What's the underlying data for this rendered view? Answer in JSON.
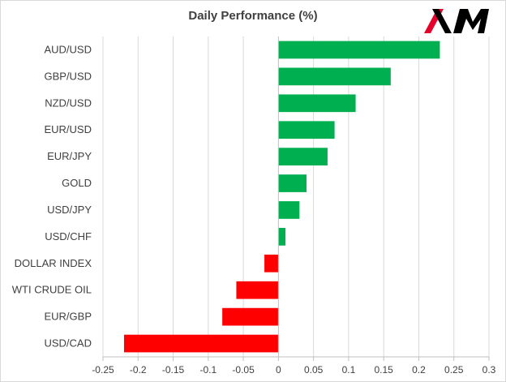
{
  "chart_data": {
    "type": "bar",
    "orientation": "horizontal",
    "title": "Daily Performance (%)",
    "xlabel": "",
    "ylabel": "",
    "categories": [
      "AUD/USD",
      "GBP/USD",
      "NZD/USD",
      "EUR/USD",
      "EUR/JPY",
      "GOLD",
      "USD/JPY",
      "USD/CHF",
      "DOLLAR INDEX",
      "WTI CRUDE OIL",
      "EUR/GBP",
      "USD/CAD"
    ],
    "values": [
      0.23,
      0.16,
      0.11,
      0.08,
      0.07,
      0.04,
      0.03,
      0.01,
      -0.02,
      -0.06,
      -0.08,
      -0.22
    ],
    "xlim": [
      -0.25,
      0.3
    ],
    "xticks": [
      -0.25,
      -0.2,
      -0.15,
      -0.1,
      -0.05,
      0,
      0.05,
      0.1,
      0.15,
      0.2,
      0.25,
      0.3
    ],
    "xtick_labels": [
      "-0.25",
      "-0.2",
      "-0.15",
      "-0.1",
      "-0.05",
      "0",
      "0.05",
      "0.1",
      "0.15",
      "0.2",
      "0.25",
      "0.3"
    ],
    "grid": "vertical",
    "legend": "none",
    "colors": {
      "positive": "#00b050",
      "negative": "#ff0000",
      "grid": "#d9d9d9",
      "text": "#404040"
    }
  },
  "logo": {
    "text": "XM",
    "color": "#000000",
    "accent": "#e4002b"
  }
}
